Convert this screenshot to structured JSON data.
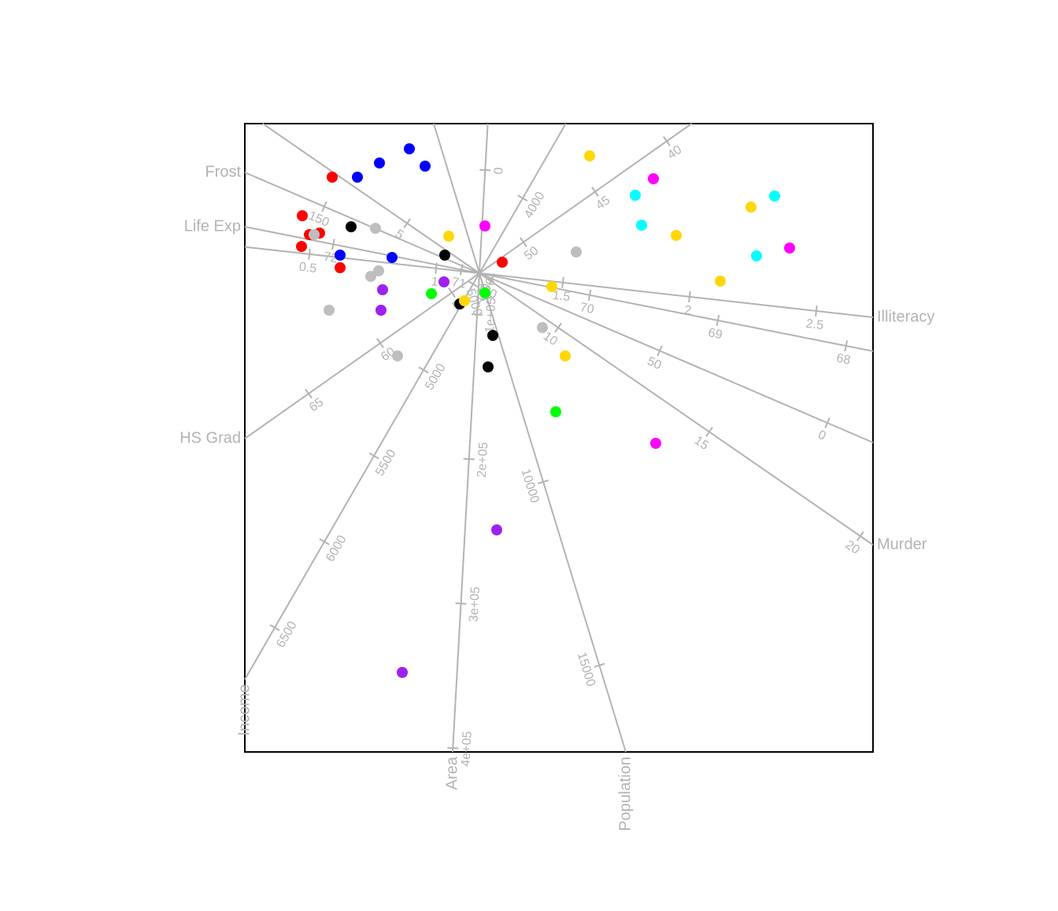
{
  "chart_data": {
    "type": "biplot",
    "xlim": [
      -2.98,
      5.0
    ],
    "ylim": [
      -6.08,
      1.9
    ],
    "axis_color": "#b3b3b3",
    "axes": [
      {
        "name": "Illiteracy",
        "from": [
          -2.98,
          0.334
        ],
        "to": [
          5.0,
          -0.56
        ],
        "lim": [
          0.245,
          2.724
        ],
        "ticks": [
          0.5,
          1,
          1.5,
          2,
          2.5
        ]
      },
      {
        "name": "Life Exp",
        "from": [
          5.0,
          -0.99
        ],
        "to": [
          -2.98,
          0.59
        ],
        "lim": [
          67.79,
          72.69
        ],
        "ticks": [
          68,
          69,
          70,
          71,
          72
        ]
      },
      {
        "name": "Frost",
        "from": [
          5.0,
          -2.15
        ],
        "to": [
          -2.98,
          1.28
        ],
        "lim": [
          -13.6,
          173.7
        ],
        "ticks": [
          0,
          50,
          100,
          150
        ]
      },
      {
        "name": "Murder",
        "from": [
          -2.753,
          1.9
        ],
        "to": [
          5.0,
          -3.45
        ],
        "lim": [
          0.22,
          20.42
        ],
        "ticks": [
          5,
          10,
          15,
          20
        ]
      },
      {
        "name": "Population",
        "from": [
          -0.581,
          1.9
        ],
        "to": [
          1.86,
          -6.08
        ],
        "lim": [
          235,
          17361
        ],
        "ticks": [
          5000,
          10000,
          15000
        ]
      },
      {
        "name": "Area",
        "from": [
          0.106,
          1.9
        ],
        "to": [
          -0.34,
          -6.08
        ],
        "lim": [
          -32150,
          402700
        ],
        "ticks": [
          0,
          {
            "value": 100000,
            "label": "1e+05"
          },
          {
            "value": 200000,
            "label": "2e+05"
          },
          {
            "value": 300000,
            "label": "3e+05"
          },
          {
            "value": 400000,
            "label": "4e+05"
          }
        ]
      },
      {
        "name": "Income",
        "from": [
          1.097,
          1.9
        ],
        "to": [
          -2.98,
          -5.16
        ],
        "lim": [
          3566,
          6802
        ],
        "ticks": [
          4000,
          4500,
          5000,
          5500,
          6000,
          6500
        ]
      },
      {
        "name": "HS Grad",
        "from": [
          2.696,
          1.9
        ],
        "to": [
          -2.98,
          -2.1
        ],
        "lim": [
          38.26,
          69.45
        ],
        "ticks": [
          40,
          45,
          50,
          55,
          60,
          65
        ]
      }
    ],
    "series": [
      {
        "color": "#ff0000",
        "x": [
          -1.87,
          -2.25,
          -2.16,
          -2.03,
          -2.26,
          -1.77,
          0.29
        ],
        "y": [
          1.22,
          0.73,
          0.49,
          0.51,
          0.34,
          0.07,
          0.14
        ]
      },
      {
        "color": "#0000ff",
        "x": [
          -1.55,
          -1.27,
          -0.89,
          -0.69,
          -1.77,
          -1.11
        ],
        "y": [
          1.22,
          1.4,
          1.58,
          1.36,
          0.23,
          0.2
        ]
      },
      {
        "color": "#000000",
        "x": [
          -1.63,
          -0.44,
          -0.25,
          0.17,
          0.11
        ],
        "y": [
          0.59,
          0.23,
          -0.39,
          -0.79,
          -1.19
        ]
      },
      {
        "color": "#bebebe",
        "x": [
          -1.32,
          -2.1,
          -1.28,
          -1.38,
          -1.91,
          -1.04,
          1.23,
          0.8
        ],
        "y": [
          0.57,
          0.49,
          0.03,
          -0.04,
          -0.47,
          -1.05,
          0.27,
          -0.69
        ]
      },
      {
        "color": "#ffd700",
        "x": [
          1.4,
          -0.39,
          3.45,
          2.5,
          3.06,
          0.92,
          -0.19,
          1.09
        ],
        "y": [
          1.49,
          0.47,
          0.84,
          0.48,
          -0.1,
          -0.17,
          -0.35,
          -1.05
        ]
      },
      {
        "color": "#ff00ff",
        "x": [
          2.21,
          0.07,
          3.94,
          2.24
        ],
        "y": [
          1.2,
          0.6,
          0.32,
          -2.16
        ]
      },
      {
        "color": "#00ffff",
        "x": [
          1.98,
          3.75,
          2.06,
          3.52
        ],
        "y": [
          0.99,
          0.98,
          0.61,
          0.22
        ]
      },
      {
        "color": "#a020f0",
        "x": [
          -0.45,
          -1.23,
          -1.25,
          0.22,
          -0.98
        ],
        "y": [
          -0.11,
          -0.21,
          -0.47,
          -3.26,
          -5.07
        ]
      },
      {
        "color": "#00ff00",
        "x": [
          -0.61,
          0.07,
          0.97
        ],
        "y": [
          -0.26,
          -0.25,
          -1.76
        ]
      }
    ]
  }
}
